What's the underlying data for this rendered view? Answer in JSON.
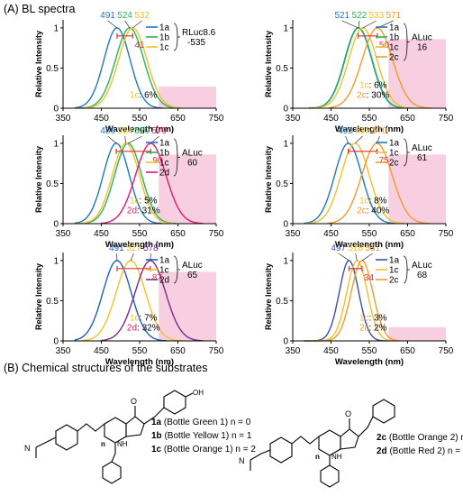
{
  "section_a_title": "(A) BL spectra",
  "section_b_title": "(B) Chemical structures of the substrates",
  "colors": {
    "1a": "#1f77c0",
    "1b": "#29b35a",
    "1c": "#f2c02a",
    "2c": "#f59a2a",
    "2d": "#e8156f",
    "bar": "#e2302f",
    "shade": "#f8cfe1"
  },
  "chart_data": [
    {
      "type": "line",
      "panel": "RLuc8.6-535",
      "xlabel": "Wavelength (nm)",
      "ylabel": "Relative Intensity",
      "xlim": [
        350,
        750
      ],
      "ylim": [
        0,
        1.1
      ],
      "xticks": [
        "350",
        "450",
        "550",
        "650",
        "750"
      ],
      "yticks": [
        "0",
        "0.5",
        "1"
      ],
      "legend_title": "RLuc8.6 -535",
      "series": [
        {
          "name": "1a",
          "color": "#1f77c0",
          "peak": 491,
          "peak_label": "491",
          "width": 48
        },
        {
          "name": "1b",
          "color": "#29b35a",
          "peak": 524,
          "peak_label": "524",
          "width": 52
        },
        {
          "name": "1c",
          "color": "#f2c02a",
          "peak": 532,
          "peak_label": "532",
          "width": 52
        }
      ],
      "shift_label": "41",
      "bar_from": 491,
      "bar_to": 532,
      "shade_from": 600,
      "shade_height": 0.27,
      "notes": [
        {
          "code": "1c",
          "code_color": "#f2c02a",
          "text": ": 6%"
        }
      ]
    },
    {
      "type": "line",
      "panel": "ALuc16",
      "xlabel": "Wavelength (nm)",
      "ylabel": "Relative Intensity",
      "xlim": [
        350,
        750
      ],
      "ylim": [
        0,
        1.1
      ],
      "xticks": [
        "350",
        "450",
        "550",
        "650",
        "750"
      ],
      "yticks": [
        "0",
        "0.5",
        "1"
      ],
      "legend_title": "ALuc 16",
      "series": [
        {
          "name": "1a",
          "color": "#1f77c0",
          "peak": 521,
          "peak_label": "521",
          "width": 50
        },
        {
          "name": "1b",
          "color": "#29b35a",
          "peak": 522,
          "peak_label": "522",
          "width": 50
        },
        {
          "name": "1c",
          "color": "#f2c02a",
          "peak": 533,
          "peak_label": "533",
          "width": 52
        },
        {
          "name": "2c",
          "color": "#f59a2a",
          "peak": 571,
          "peak_label": "571",
          "width": 56
        }
      ],
      "shift_label": "50",
      "bar_from": 521,
      "bar_to": 571,
      "shade_from": 600,
      "shade_height": 0.86,
      "notes": [
        {
          "code": "1c",
          "code_color": "#f2c02a",
          "text": ": 6%"
        },
        {
          "code": "2c",
          "code_color": "#f59a2a",
          "text": ": 30%"
        }
      ]
    },
    {
      "type": "line",
      "panel": "ALuc60",
      "xlabel": "Wavelength (nm)",
      "ylabel": "Relative Intensity",
      "xlim": [
        350,
        750
      ],
      "ylim": [
        0,
        1.1
      ],
      "xticks": [
        "350",
        "450",
        "550",
        "650",
        "750"
      ],
      "yticks": [
        "0",
        "0.5",
        "1"
      ],
      "legend_title": "ALuc 60",
      "series": [
        {
          "name": "1a",
          "color": "#1f77c0",
          "peak": 489,
          "peak_label": "489",
          "width": 48
        },
        {
          "name": "1b",
          "color": "#29b35a",
          "peak": 520,
          "peak_label": "520",
          "width": 50
        },
        {
          "name": "1c",
          "color": "#f2c02a",
          "peak": 514,
          "peak_label": "514",
          "width": 50
        },
        {
          "name": "2d",
          "color": "#e8156f",
          "peak": 579,
          "peak_label": "579",
          "width": 56
        }
      ],
      "shift_label": "90",
      "bar_from": 489,
      "bar_to": 579,
      "shade_from": 600,
      "shade_height": 0.86,
      "notes": [
        {
          "code": "1c",
          "code_color": "#f2c02a",
          "text": ": 5%"
        },
        {
          "code": "2d",
          "code_color": "#e8156f",
          "text": ": 31%"
        }
      ]
    },
    {
      "type": "line",
      "panel": "ALuc61",
      "xlabel": "Wavelength (nm)",
      "ylabel": "Relative Intensity",
      "xlim": [
        350,
        750
      ],
      "ylim": [
        0,
        1.1
      ],
      "xticks": [
        "350",
        "450",
        "550",
        "650",
        "750"
      ],
      "yticks": [
        "0",
        "0.5",
        "1"
      ],
      "legend_title": "ALuc 61",
      "series": [
        {
          "name": "1a",
          "color": "#1f77c0",
          "peak": 495,
          "peak_label": "495",
          "width": 50
        },
        {
          "name": "1c",
          "color": "#f2c02a",
          "peak": 513,
          "peak_label": "513",
          "width": 52
        },
        {
          "name": "2c",
          "color": "#f59a2a",
          "peak": 570,
          "peak_label": "570",
          "width": 56
        }
      ],
      "shift_label": "75",
      "bar_from": 495,
      "bar_to": 570,
      "shade_from": 600,
      "shade_height": 0.86,
      "notes": [
        {
          "code": "1c",
          "code_color": "#f2c02a",
          "text": ": 8%"
        },
        {
          "code": "2c",
          "code_color": "#f59a2a",
          "text": ": 40%"
        }
      ]
    },
    {
      "type": "line",
      "panel": "ALuc65",
      "xlabel": "Wavelength (nm)",
      "ylabel": "Relative Intensity",
      "xlim": [
        350,
        750
      ],
      "ylim": [
        0,
        1.1
      ],
      "xticks": [
        "350",
        "450",
        "550",
        "650",
        "750"
      ],
      "yticks": [
        "0",
        "0.5",
        "1"
      ],
      "legend_title": "ALuc 65",
      "series": [
        {
          "name": "1a",
          "color": "#1f5fb8",
          "peak": 491,
          "peak_label": "491",
          "width": 52
        },
        {
          "name": "1c",
          "color": "#f2c02a",
          "peak": 527,
          "peak_label": "527",
          "width": 54
        },
        {
          "name": "2d",
          "color": "#7b2a8e",
          "peak": 578,
          "peak_label": "578",
          "width": 56
        }
      ],
      "shift_label": "87",
      "bar_from": 491,
      "bar_to": 578,
      "shade_from": 600,
      "shade_height": 0.86,
      "notes": [
        {
          "code": "1c",
          "code_color": "#f2c02a",
          "text": ": 7%"
        },
        {
          "code": "2d",
          "code_color": "#e8156f",
          "text": ": 32%"
        }
      ]
    },
    {
      "type": "line",
      "panel": "ALuc68",
      "xlabel": "Wavelength (nm)",
      "ylabel": "Relative Intensity",
      "xlim": [
        350,
        750
      ],
      "ylim": [
        0,
        1.1
      ],
      "xticks": [
        "350",
        "450",
        "550",
        "650",
        "750"
      ],
      "yticks": [
        "0",
        "0.5",
        "1"
      ],
      "legend_title": "ALuc 68",
      "series": [
        {
          "name": "1a",
          "color": "#3a4fb0",
          "peak": 497,
          "peak_label": "497",
          "width": 36
        },
        {
          "name": "1c",
          "color": "#f2c02a",
          "peak": 518,
          "peak_label": "518",
          "width": 38
        },
        {
          "name": "2c",
          "color": "#f59a2a",
          "peak": 531,
          "peak_label": "531",
          "width": 40
        }
      ],
      "shift_label": "34",
      "bar_from": 497,
      "bar_to": 531,
      "shade_from": 600,
      "shade_height": 0.17,
      "notes": [
        {
          "code": "1c",
          "code_color": "#f2c02a",
          "text": ": 3%"
        },
        {
          "code": "2c",
          "code_color": "#f59a2a",
          "text": ": 2%"
        }
      ]
    }
  ],
  "structures": {
    "left": {
      "substituent": "OH",
      "n_label": "n",
      "entries": [
        {
          "code": "1a",
          "text": " (Bottle Green 1) n = 0"
        },
        {
          "code": "1b",
          "text": " (Bottle Yellow 1) n = 1"
        },
        {
          "code": "1c",
          "text": " (Bottle Orange 1) n = 2"
        }
      ]
    },
    "right": {
      "n_label": "n",
      "entries": [
        {
          "code": "2c",
          "text": " (Bottle Orange 2) n = 2"
        },
        {
          "code": "2d",
          "text": " (Bottle Red 2) n = 3"
        }
      ]
    }
  }
}
